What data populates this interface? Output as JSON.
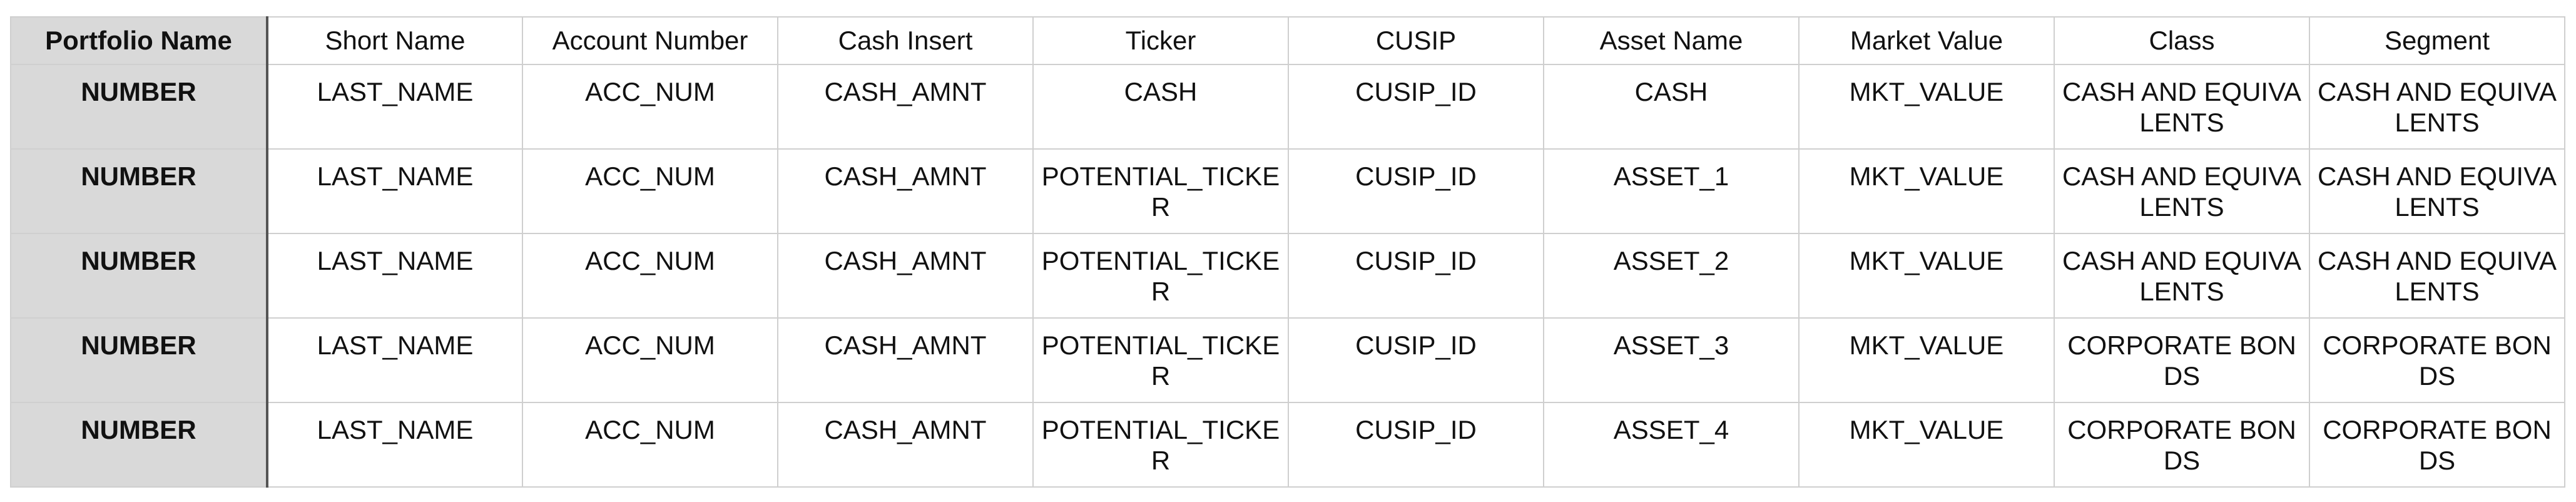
{
  "table": {
    "headers": [
      "Portfolio Name",
      "Short Name",
      "Account Number",
      "Cash Insert",
      "Ticker",
      "CUSIP",
      "Asset Name",
      "Market Value",
      "Class",
      "Segment"
    ],
    "rows": [
      [
        "NUMBER",
        "LAST_NAME",
        "ACC_NUM",
        "CASH_AMNT",
        "CASH",
        "CUSIP_ID",
        "CASH",
        "MKT_VALUE",
        "CASH AND EQUIVALENTS",
        "CASH AND EQUIVALENTS"
      ],
      [
        "NUMBER",
        "LAST_NAME",
        "ACC_NUM",
        "CASH_AMNT",
        "POTENTIAL_TICKER",
        "CUSIP_ID",
        "ASSET_1",
        "MKT_VALUE",
        "CASH AND EQUIVALENTS",
        "CASH AND EQUIVALENTS"
      ],
      [
        "NUMBER",
        "LAST_NAME",
        "ACC_NUM",
        "CASH_AMNT",
        "POTENTIAL_TICKER",
        "CUSIP_ID",
        "ASSET_2",
        "MKT_VALUE",
        "CASH AND EQUIVALENTS",
        "CASH AND EQUIVALENTS"
      ],
      [
        "NUMBER",
        "LAST_NAME",
        "ACC_NUM",
        "CASH_AMNT",
        "POTENTIAL_TICKER",
        "CUSIP_ID",
        "ASSET_3",
        "MKT_VALUE",
        "CORPORATE BONDS",
        "CORPORATE BONDS"
      ],
      [
        "NUMBER",
        "LAST_NAME",
        "ACC_NUM",
        "CASH_AMNT",
        "POTENTIAL_TICKER",
        "CUSIP_ID",
        "ASSET_4",
        "MKT_VALUE",
        "CORPORATE BONDS",
        "CORPORATE BONDS"
      ]
    ]
  },
  "colors": {
    "first_column_fill": "#d9d9d9",
    "grid_line": "#cfcfcf",
    "frozen_divider": "#555555"
  }
}
